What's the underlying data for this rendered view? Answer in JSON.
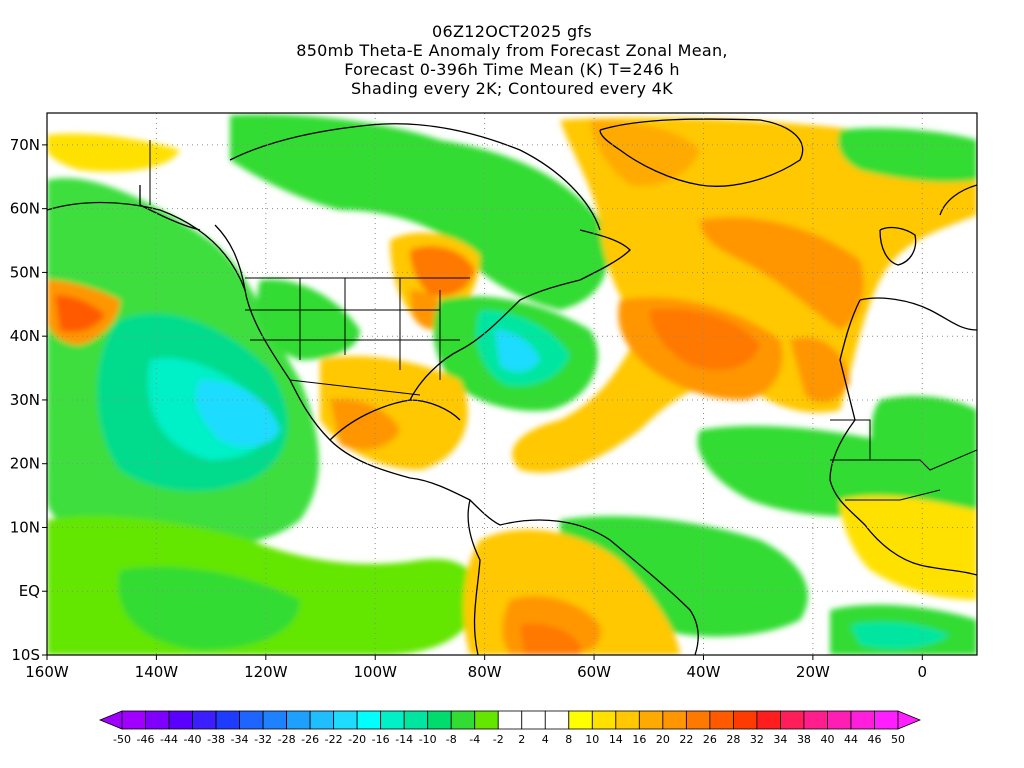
{
  "header": {
    "line1": "06Z12OCT2025 gfs",
    "line2": "850mb Theta-E Anomaly from Forecast Zonal Mean,",
    "line3": "Forecast 0-396h Time Mean (K) T=246 h",
    "line4": "Shading every 2K; Contoured every 4K"
  },
  "map": {
    "projection": "cylindrical-equidistant",
    "lon_range": [
      -160,
      10
    ],
    "lat_range": [
      -10,
      75
    ],
    "lat_ticks": [
      {
        "value": 70,
        "label": "70N"
      },
      {
        "value": 60,
        "label": "60N"
      },
      {
        "value": 50,
        "label": "50N"
      },
      {
        "value": 40,
        "label": "40N"
      },
      {
        "value": 30,
        "label": "30N"
      },
      {
        "value": 20,
        "label": "20N"
      },
      {
        "value": 10,
        "label": "10N"
      },
      {
        "value": 0,
        "label": "EQ"
      },
      {
        "value": -10,
        "label": "10S"
      }
    ],
    "lon_ticks": [
      {
        "value": -160,
        "label": "160W"
      },
      {
        "value": -140,
        "label": "140W"
      },
      {
        "value": -120,
        "label": "120W"
      },
      {
        "value": -100,
        "label": "100W"
      },
      {
        "value": -80,
        "label": "80W"
      },
      {
        "value": -60,
        "label": "60W"
      },
      {
        "value": -40,
        "label": "40W"
      },
      {
        "value": -20,
        "label": "20W"
      },
      {
        "value": 0,
        "label": "0"
      }
    ],
    "gridlines": "dotted"
  },
  "colorbar": {
    "labels": [
      "-50",
      "-46",
      "-44",
      "-40",
      "-38",
      "-34",
      "-32",
      "-28",
      "-26",
      "-22",
      "-20",
      "-16",
      "-14",
      "-10",
      "-8",
      "-4",
      "-2",
      "2",
      "4",
      "8",
      "10",
      "14",
      "16",
      "20",
      "22",
      "26",
      "28",
      "32",
      "34",
      "38",
      "40",
      "44",
      "46",
      "50"
    ],
    "colors": [
      "#a000ff",
      "#7f00ff",
      "#5a00ff",
      "#3c1eff",
      "#1e3cff",
      "#1e64ff",
      "#1e82ff",
      "#1ea0ff",
      "#1ebeff",
      "#1edcff",
      "#00ffff",
      "#00f0c8",
      "#00e6a0",
      "#00dc6e",
      "#32dc32",
      "#64e600",
      "#ffffff",
      "#ffffff",
      "#ffffff",
      "#ffff00",
      "#ffe100",
      "#ffc800",
      "#ffaa00",
      "#ff9600",
      "#ff7800",
      "#ff5a00",
      "#ff3c00",
      "#ff1e1e",
      "#ff1e5a",
      "#ff1e8c",
      "#ff1eb4",
      "#ff1edc",
      "#ff1eff"
    ]
  }
}
